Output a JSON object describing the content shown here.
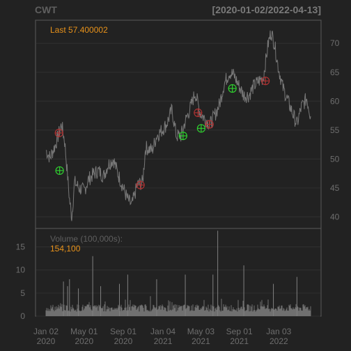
{
  "chart_data": {
    "type": "line",
    "title": "CWT",
    "date_range": "[2020-01-02/2022-04-13]",
    "last_label": "Last 57.400002",
    "price": {
      "ylim": [
        38,
        74
      ],
      "yticks": [
        40,
        45,
        50,
        55,
        60,
        65,
        70
      ],
      "series": {
        "x": [
          "2020-01-02",
          "2020-01-15",
          "2020-02-01",
          "2020-02-12",
          "2020-02-20",
          "2020-03-01",
          "2020-03-10",
          "2020-03-16",
          "2020-03-23",
          "2020-04-01",
          "2020-04-15",
          "2020-05-01",
          "2020-05-15",
          "2020-06-01",
          "2020-06-15",
          "2020-07-01",
          "2020-07-15",
          "2020-08-01",
          "2020-08-15",
          "2020-09-01",
          "2020-09-15",
          "2020-09-28",
          "2020-10-15",
          "2020-11-01",
          "2020-11-10",
          "2020-12-01",
          "2020-12-15",
          "2021-01-01",
          "2021-01-15",
          "2021-02-01",
          "2021-02-15",
          "2021-03-01",
          "2021-03-15",
          "2021-04-01",
          "2021-04-15",
          "2021-05-01",
          "2021-05-15",
          "2021-06-01",
          "2021-06-15",
          "2021-07-01",
          "2021-07-15",
          "2021-08-01",
          "2021-08-15",
          "2021-09-01",
          "2021-09-15",
          "2021-10-01",
          "2021-10-15",
          "2021-11-01",
          "2021-11-15",
          "2021-12-01",
          "2021-12-10",
          "2021-12-20",
          "2022-01-01",
          "2022-01-15",
          "2022-02-01",
          "2022-02-15",
          "2022-03-01",
          "2022-03-15",
          "2022-04-01",
          "2022-04-13"
        ],
        "y": [
          51.5,
          50.2,
          52.5,
          54.5,
          56.0,
          53.0,
          47.0,
          43.0,
          40.0,
          46.0,
          45.0,
          44.5,
          46.5,
          47.5,
          48.0,
          47.0,
          49.0,
          50.0,
          47.5,
          45.0,
          43.0,
          42.0,
          45.5,
          46.0,
          52.0,
          51.5,
          54.0,
          55.0,
          56.0,
          58.5,
          54.0,
          54.0,
          56.5,
          59.0,
          61.5,
          58.0,
          57.0,
          56.0,
          57.5,
          59.5,
          63.0,
          65.0,
          64.5,
          62.5,
          61.0,
          61.0,
          62.5,
          63.5,
          64.0,
          70.0,
          72.0,
          70.0,
          66.0,
          62.5,
          60.0,
          58.0,
          56.0,
          59.0,
          60.5,
          57.4
        ]
      }
    },
    "markers": [
      {
        "type": "sell",
        "x": "2020-02-12",
        "y": 54.5
      },
      {
        "type": "buy",
        "x": "2020-02-14",
        "y": 48.0
      },
      {
        "type": "sell",
        "x": "2020-10-25",
        "y": 45.5
      },
      {
        "type": "buy",
        "x": "2021-03-08",
        "y": 54.0
      },
      {
        "type": "sell",
        "x": "2021-04-24",
        "y": 58.0
      },
      {
        "type": "buy",
        "x": "2021-05-04",
        "y": 55.3
      },
      {
        "type": "sell",
        "x": "2021-05-30",
        "y": 56.0
      },
      {
        "type": "buy",
        "x": "2021-08-10",
        "y": 62.2
      },
      {
        "type": "sell",
        "x": "2021-11-22",
        "y": 63.5
      }
    ],
    "volume": {
      "label": "Volume (100,000s):",
      "last": "154,100",
      "ylim": [
        0,
        19
      ],
      "yticks": [
        0,
        5,
        10,
        15
      ],
      "spikes": [
        {
          "x": "2020-02-26",
          "v": 7.5
        },
        {
          "x": "2020-03-10",
          "v": 6.5
        },
        {
          "x": "2020-03-16",
          "v": 8.0
        },
        {
          "x": "2020-04-13",
          "v": 6.0
        },
        {
          "x": "2020-05-28",
          "v": 13.0
        },
        {
          "x": "2020-06-22",
          "v": 6.5
        },
        {
          "x": "2020-08-20",
          "v": 7.0
        },
        {
          "x": "2020-09-15",
          "v": 9.0
        },
        {
          "x": "2020-12-15",
          "v": 8.0
        },
        {
          "x": "2021-03-15",
          "v": 9.0
        },
        {
          "x": "2021-06-10",
          "v": 9.0
        },
        {
          "x": "2021-06-25",
          "v": 18.5
        },
        {
          "x": "2021-09-15",
          "v": 11.0
        },
        {
          "x": "2021-12-17",
          "v": 7.0
        },
        {
          "x": "2022-03-01",
          "v": 8.5
        }
      ]
    },
    "xticks": [
      {
        "x": "2020-01-02",
        "l1": "Jan 02",
        "l2": "2020"
      },
      {
        "x": "2020-05-01",
        "l1": "May 01",
        "l2": "2020"
      },
      {
        "x": "2020-09-01",
        "l1": "Sep 01",
        "l2": "2020"
      },
      {
        "x": "2021-01-04",
        "l1": "Jan 04",
        "l2": "2021"
      },
      {
        "x": "2021-05-03",
        "l1": "May 03",
        "l2": "2021"
      },
      {
        "x": "2021-09-01",
        "l1": "Sep 01",
        "l2": "2021"
      },
      {
        "x": "2022-01-03",
        "l1": "Jan 03",
        "l2": "2022"
      }
    ],
    "xlim": [
      "2020-01-02",
      "2022-04-13"
    ],
    "colors": {
      "background": "#222222",
      "line": "#787878",
      "grid": "#303030",
      "frame": "#5a5a5a",
      "last": "#e8921a",
      "buy": "#2fd02f",
      "sell": "#b03333"
    }
  }
}
